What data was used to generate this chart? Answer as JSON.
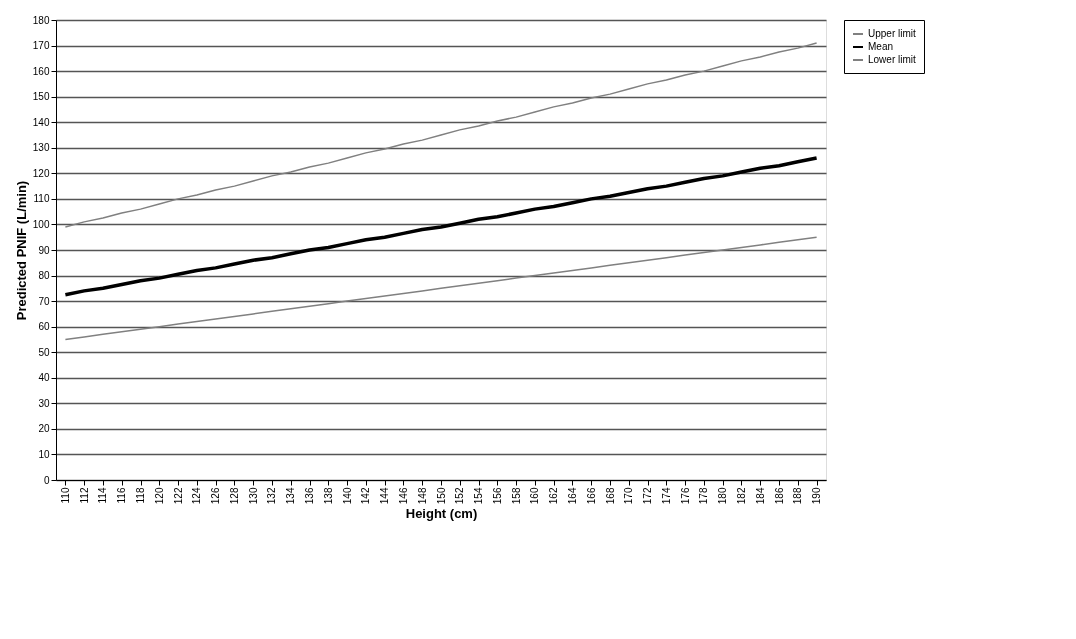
{
  "chart_data": {
    "type": "line",
    "xlabel": "Height (cm)",
    "ylabel": "Predicted PNIF (L/min)",
    "categories": [
      "110",
      "112",
      "114",
      "116",
      "118",
      "120",
      "122",
      "124",
      "126",
      "128",
      "130",
      "132",
      "134",
      "136",
      "138",
      "140",
      "142",
      "144",
      "146",
      "148",
      "150",
      "152",
      "154",
      "156",
      "158",
      "160",
      "162",
      "164",
      "166",
      "168",
      "170",
      "172",
      "174",
      "176",
      "178",
      "180",
      "182",
      "184",
      "186",
      "188",
      "190"
    ],
    "series": [
      {
        "name": "Upper limit",
        "color": "#808080",
        "values": [
          99,
          101,
          102.5,
          104.5,
          106,
          108,
          110,
          111.5,
          113.5,
          115,
          117,
          119,
          120.5,
          122.5,
          124,
          126,
          128,
          129.5,
          131.5,
          133,
          135,
          137,
          138.5,
          140.5,
          142,
          144,
          146,
          147.5,
          149.5,
          151,
          153,
          155,
          156.5,
          158.5,
          160,
          162,
          164,
          165.5,
          167.5,
          169,
          171
        ]
      },
      {
        "name": "Mean",
        "color": "#000000",
        "values": [
          72.5,
          74,
          75,
          76.5,
          78,
          79,
          80.5,
          82,
          83,
          84.5,
          86,
          87,
          88.5,
          90,
          91,
          92.5,
          94,
          95,
          96.5,
          98,
          99,
          100.5,
          102,
          103,
          104.5,
          106,
          107,
          108.5,
          110,
          111,
          112.5,
          114,
          115,
          116.5,
          118,
          119,
          120.5,
          122,
          123,
          124.5,
          126
        ]
      },
      {
        "name": "Lower limit",
        "color": "#808080",
        "values": [
          55,
          56,
          57,
          58,
          59,
          60,
          61,
          62,
          63,
          64,
          65,
          66,
          67,
          68,
          69,
          70,
          71,
          72,
          73,
          74,
          75,
          76,
          77,
          78,
          79,
          80,
          81,
          82,
          83,
          84,
          85,
          86,
          87,
          88,
          89,
          90,
          91,
          92,
          93,
          94,
          95
        ]
      }
    ],
    "ylim": [
      0,
      180
    ],
    "yticks": [
      0,
      10,
      20,
      30,
      40,
      50,
      60,
      70,
      80,
      90,
      100,
      110,
      120,
      130,
      140,
      150,
      160,
      170,
      180
    ],
    "grid": "y",
    "legend": "top right",
    "marker": "none",
    "line_style": "solid"
  }
}
